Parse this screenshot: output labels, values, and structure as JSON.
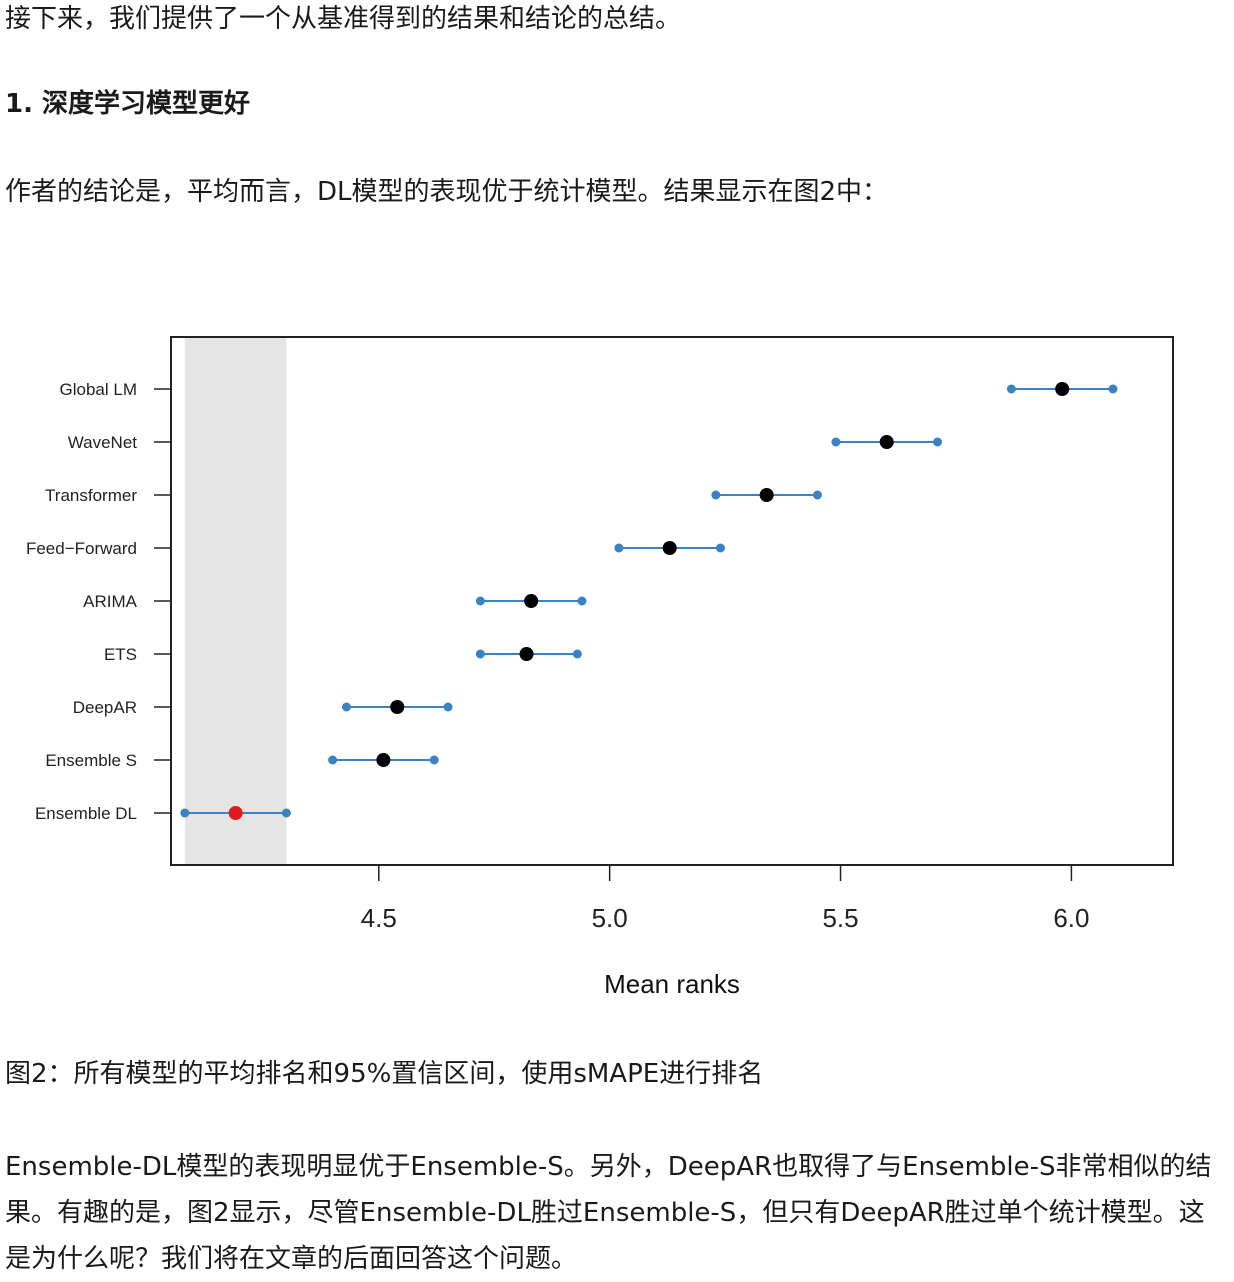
{
  "article": {
    "intro": "接下来，我们提供了一个从基准得到的结果和结论的总结。",
    "heading": "1. 深度学习模型更好",
    "conclusion": "作者的结论是，平均而言，DL模型的表现优于统计模型。结果显示在图2中：",
    "caption": "图2：所有模型的平均排名和95%置信区间，使用sMAPE进行排名",
    "body": "Ensemble-DL模型的表现明显优于Ensemble-S。另外，DeepAR也取得了与Ensemble-S非常相似的结果。有趣的是，图2显示，尽管Ensemble-DL胜过Ensemble-S，但只有DeepAR胜过单个统计模型。这是为什么呢？我们将在文章的后面回答这个问题。"
  },
  "chart_data": {
    "type": "scatter",
    "title": "",
    "xlabel": "Mean ranks",
    "ylabel": "",
    "xlim": [
      4.05,
      6.22
    ],
    "xticks": [
      "4.5",
      "5.0",
      "5.5",
      "6.0"
    ],
    "grid": false,
    "shaded_band": {
      "from": 4.08,
      "to": 4.3
    },
    "colors": {
      "interval": "#3b82c4",
      "mean": "#000000",
      "best_mean": "#e0191b",
      "band": "#e5e5e5"
    },
    "models": [
      {
        "name": "Global LM",
        "mean": 5.98,
        "lower": 5.87,
        "upper": 6.09
      },
      {
        "name": "WaveNet",
        "mean": 5.6,
        "lower": 5.49,
        "upper": 5.71
      },
      {
        "name": "Transformer",
        "mean": 5.34,
        "lower": 5.23,
        "upper": 5.45
      },
      {
        "name": "Feed−Forward",
        "mean": 5.13,
        "lower": 5.02,
        "upper": 5.24
      },
      {
        "name": "ARIMA",
        "mean": 4.83,
        "lower": 4.72,
        "upper": 4.94
      },
      {
        "name": "ETS",
        "mean": 4.82,
        "lower": 4.72,
        "upper": 4.93
      },
      {
        "name": "DeepAR",
        "mean": 4.54,
        "lower": 4.43,
        "upper": 4.65
      },
      {
        "name": "Ensemble S",
        "mean": 4.51,
        "lower": 4.4,
        "upper": 4.62
      },
      {
        "name": "Ensemble DL",
        "mean": 4.19,
        "lower": 4.08,
        "upper": 4.3,
        "highlight": true
      }
    ]
  }
}
